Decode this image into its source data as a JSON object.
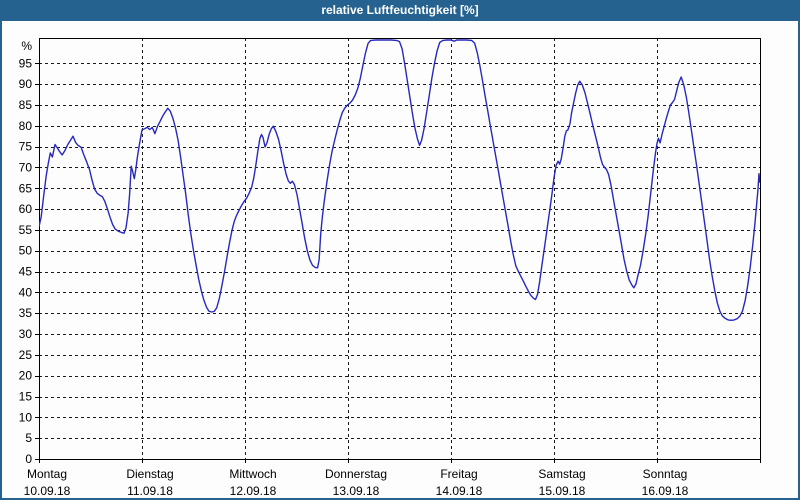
{
  "window": {
    "title": "relative Luftfeuchtigkeit [%]"
  },
  "colors": {
    "titlebar_bg": "#26628f",
    "titlebar_text": "#ffffff",
    "page_bg": "#fcfdfc",
    "grid": "#1a1a1a",
    "line": "#2828c0"
  },
  "chart_data": {
    "type": "line",
    "title": "relative Luftfeuchtigkeit [%]",
    "ylabel": "%",
    "unit_label": "%",
    "ylim": [
      0,
      101
    ],
    "y_ticks": [
      0,
      5,
      10,
      15,
      20,
      25,
      30,
      35,
      40,
      45,
      50,
      55,
      60,
      65,
      70,
      75,
      80,
      85,
      90,
      95
    ],
    "grid": "dashed",
    "legend": "none",
    "x_unit": "days since Mon 10.09.18 00:00 (7 days total)",
    "x_days": [
      {
        "label": "Montag",
        "date": "10.09.18"
      },
      {
        "label": "Dienstag",
        "date": "11.09.18"
      },
      {
        "label": "Mittwoch",
        "date": "12.09.18"
      },
      {
        "label": "Donnerstag",
        "date": "13.09.18"
      },
      {
        "label": "Freitag",
        "date": "14.09.18"
      },
      {
        "label": "Samstag",
        "date": "15.09.18"
      },
      {
        "label": "Sonntag",
        "date": "16.09.18"
      }
    ],
    "series": [
      {
        "name": "relative Luftfeuchtigkeit [%]",
        "color": "#2828c0",
        "points": [
          [
            0,
            55.8
          ],
          [
            0.02,
            58
          ],
          [
            0.045,
            63
          ],
          [
            0.07,
            68
          ],
          [
            0.09,
            71
          ],
          [
            0.11,
            73.5
          ],
          [
            0.13,
            72.5
          ],
          [
            0.155,
            75.5
          ],
          [
            0.175,
            74.8
          ],
          [
            0.2,
            73.8
          ],
          [
            0.225,
            73
          ],
          [
            0.25,
            74
          ],
          [
            0.28,
            75.5
          ],
          [
            0.305,
            76.5
          ],
          [
            0.33,
            77.5
          ],
          [
            0.355,
            76
          ],
          [
            0.38,
            75.3
          ],
          [
            0.41,
            74.8
          ],
          [
            0.435,
            73
          ],
          [
            0.46,
            71.5
          ],
          [
            0.49,
            69.5
          ],
          [
            0.515,
            67
          ],
          [
            0.54,
            64.8
          ],
          [
            0.565,
            63.8
          ],
          [
            0.59,
            63.3
          ],
          [
            0.615,
            63
          ],
          [
            0.64,
            61.8
          ],
          [
            0.665,
            60
          ],
          [
            0.69,
            58
          ],
          [
            0.715,
            56.3
          ],
          [
            0.74,
            55.2
          ],
          [
            0.77,
            54.7
          ],
          [
            0.8,
            54.4
          ],
          [
            0.825,
            54.2
          ],
          [
            0.845,
            55.5
          ],
          [
            0.865,
            59
          ],
          [
            0.88,
            63.5
          ],
          [
            0.895,
            70.3
          ],
          [
            0.91,
            69
          ],
          [
            0.925,
            67.3
          ],
          [
            0.94,
            69.5
          ],
          [
            0.955,
            72.5
          ],
          [
            0.975,
            75.5
          ],
          [
            1,
            79
          ],
          [
            1.025,
            79.3
          ],
          [
            1.05,
            79.6
          ],
          [
            1.075,
            79.1
          ],
          [
            1.1,
            79.6
          ],
          [
            1.125,
            78.1
          ],
          [
            1.15,
            79.8
          ],
          [
            1.175,
            81
          ],
          [
            1.2,
            82.3
          ],
          [
            1.225,
            83.3
          ],
          [
            1.25,
            84.2
          ],
          [
            1.275,
            83.5
          ],
          [
            1.3,
            81.8
          ],
          [
            1.325,
            79.5
          ],
          [
            1.35,
            76.5
          ],
          [
            1.375,
            72.5
          ],
          [
            1.4,
            68
          ],
          [
            1.425,
            63.5
          ],
          [
            1.45,
            58.5
          ],
          [
            1.475,
            54
          ],
          [
            1.5,
            50
          ],
          [
            1.525,
            46.5
          ],
          [
            1.55,
            43.2
          ],
          [
            1.575,
            40.5
          ],
          [
            1.6,
            38.2
          ],
          [
            1.625,
            36.5
          ],
          [
            1.65,
            35.5
          ],
          [
            1.675,
            35.3
          ],
          [
            1.7,
            35.4
          ],
          [
            1.725,
            36.3
          ],
          [
            1.75,
            38.5
          ],
          [
            1.775,
            41.5
          ],
          [
            1.8,
            44.8
          ],
          [
            1.825,
            48.5
          ],
          [
            1.85,
            52
          ],
          [
            1.875,
            55
          ],
          [
            1.895,
            57
          ],
          [
            1.915,
            58.3
          ],
          [
            1.94,
            59.6
          ],
          [
            1.965,
            60.8
          ],
          [
            1.99,
            61.8
          ],
          [
            2.015,
            62.6
          ],
          [
            2.04,
            63.8
          ],
          [
            2.065,
            65.3
          ],
          [
            2.085,
            67.5
          ],
          [
            2.105,
            70.5
          ],
          [
            2.125,
            74
          ],
          [
            2.145,
            77
          ],
          [
            2.16,
            77.9
          ],
          [
            2.175,
            77.2
          ],
          [
            2.195,
            74.9
          ],
          [
            2.215,
            76
          ],
          [
            2.235,
            78
          ],
          [
            2.255,
            79.3
          ],
          [
            2.275,
            79.9
          ],
          [
            2.3,
            78.6
          ],
          [
            2.325,
            76.8
          ],
          [
            2.35,
            74
          ],
          [
            2.375,
            71
          ],
          [
            2.4,
            68.3
          ],
          [
            2.42,
            66.8
          ],
          [
            2.44,
            66.2
          ],
          [
            2.46,
            66.7
          ],
          [
            2.48,
            65.9
          ],
          [
            2.505,
            63.5
          ],
          [
            2.53,
            60
          ],
          [
            2.555,
            56.5
          ],
          [
            2.58,
            53
          ],
          [
            2.605,
            50
          ],
          [
            2.63,
            47.8
          ],
          [
            2.655,
            46.5
          ],
          [
            2.68,
            46
          ],
          [
            2.705,
            45.9
          ],
          [
            2.72,
            48
          ],
          [
            2.735,
            54
          ],
          [
            2.75,
            58
          ],
          [
            2.77,
            62
          ],
          [
            2.795,
            66.5
          ],
          [
            2.82,
            70.5
          ],
          [
            2.845,
            73.8
          ],
          [
            2.87,
            76.5
          ],
          [
            2.895,
            79
          ],
          [
            2.92,
            81.3
          ],
          [
            2.945,
            83.2
          ],
          [
            2.97,
            84.3
          ],
          [
            2.995,
            85
          ],
          [
            3.02,
            85.5
          ],
          [
            3.045,
            86.2
          ],
          [
            3.07,
            87.4
          ],
          [
            3.095,
            89
          ],
          [
            3.12,
            91.5
          ],
          [
            3.145,
            94.5
          ],
          [
            3.17,
            97.5
          ],
          [
            3.195,
            99.8
          ],
          [
            3.22,
            100.5
          ],
          [
            3.27,
            100.6
          ],
          [
            3.32,
            100.6
          ],
          [
            3.37,
            100.6
          ],
          [
            3.42,
            100.6
          ],
          [
            3.47,
            100.5
          ],
          [
            3.5,
            100.2
          ],
          [
            3.525,
            98.5
          ],
          [
            3.55,
            95
          ],
          [
            3.575,
            91
          ],
          [
            3.6,
            87
          ],
          [
            3.625,
            83
          ],
          [
            3.65,
            79.5
          ],
          [
            3.675,
            76.8
          ],
          [
            3.695,
            75.3
          ],
          [
            3.715,
            76.5
          ],
          [
            3.74,
            79.5
          ],
          [
            3.765,
            83.5
          ],
          [
            3.79,
            87.5
          ],
          [
            3.815,
            91.5
          ],
          [
            3.84,
            95
          ],
          [
            3.865,
            98
          ],
          [
            3.89,
            100
          ],
          [
            3.92,
            100.5
          ],
          [
            3.96,
            100.6
          ],
          [
            4,
            100.6
          ],
          [
            4.03,
            100.3
          ],
          [
            4.055,
            100.6
          ],
          [
            4.1,
            100.6
          ],
          [
            4.15,
            100.6
          ],
          [
            4.2,
            100.5
          ],
          [
            4.23,
            99.8
          ],
          [
            4.255,
            97.5
          ],
          [
            4.28,
            94.5
          ],
          [
            4.305,
            91
          ],
          [
            4.33,
            87.3
          ],
          [
            4.355,
            83.8
          ],
          [
            4.38,
            80.3
          ],
          [
            4.405,
            76.8
          ],
          [
            4.43,
            73.3
          ],
          [
            4.455,
            69.8
          ],
          [
            4.48,
            66.3
          ],
          [
            4.505,
            62.8
          ],
          [
            4.53,
            59.3
          ],
          [
            4.555,
            55.8
          ],
          [
            4.58,
            52.3
          ],
          [
            4.605,
            49
          ],
          [
            4.63,
            46.3
          ],
          [
            4.65,
            45.2
          ],
          [
            4.675,
            44
          ],
          [
            4.7,
            42.8
          ],
          [
            4.725,
            41.5
          ],
          [
            4.75,
            40.3
          ],
          [
            4.775,
            39.3
          ],
          [
            4.8,
            38.6
          ],
          [
            4.82,
            38.3
          ],
          [
            4.84,
            39.5
          ],
          [
            4.86,
            42.5
          ],
          [
            4.88,
            46
          ],
          [
            4.9,
            49.5
          ],
          [
            4.92,
            53
          ],
          [
            4.94,
            56.5
          ],
          [
            4.96,
            60
          ],
          [
            4.98,
            63.5
          ],
          [
            5,
            67.5
          ],
          [
            5.02,
            70.5
          ],
          [
            5.04,
            71.5
          ],
          [
            5.055,
            70.8
          ],
          [
            5.07,
            72
          ],
          [
            5.09,
            75
          ],
          [
            5.105,
            77.5
          ],
          [
            5.12,
            78.8
          ],
          [
            5.135,
            79
          ],
          [
            5.155,
            80.5
          ],
          [
            5.17,
            83
          ],
          [
            5.19,
            85.5
          ],
          [
            5.21,
            87.8
          ],
          [
            5.23,
            89.8
          ],
          [
            5.25,
            90.7
          ],
          [
            5.275,
            89.8
          ],
          [
            5.3,
            88
          ],
          [
            5.325,
            85.5
          ],
          [
            5.35,
            83
          ],
          [
            5.375,
            80.3
          ],
          [
            5.4,
            77.8
          ],
          [
            5.425,
            75.3
          ],
          [
            5.45,
            72.5
          ],
          [
            5.47,
            70.8
          ],
          [
            5.49,
            70
          ],
          [
            5.51,
            69.5
          ],
          [
            5.53,
            68.3
          ],
          [
            5.555,
            65.5
          ],
          [
            5.58,
            62
          ],
          [
            5.605,
            58.5
          ],
          [
            5.63,
            55
          ],
          [
            5.655,
            51.5
          ],
          [
            5.68,
            48
          ],
          [
            5.705,
            45.2
          ],
          [
            5.73,
            43
          ],
          [
            5.755,
            41.8
          ],
          [
            5.775,
            41.1
          ],
          [
            5.795,
            42
          ],
          [
            5.815,
            44
          ],
          [
            5.84,
            46.5
          ],
          [
            5.865,
            50
          ],
          [
            5.89,
            54
          ],
          [
            5.915,
            58.5
          ],
          [
            5.94,
            64
          ],
          [
            5.965,
            69.5
          ],
          [
            5.985,
            73.5
          ],
          [
            6,
            75.8
          ],
          [
            6.015,
            77
          ],
          [
            6.03,
            75.9
          ],
          [
            6.05,
            78
          ],
          [
            6.07,
            79.9
          ],
          [
            6.09,
            81.8
          ],
          [
            6.11,
            83.4
          ],
          [
            6.13,
            85
          ],
          [
            6.15,
            85.6
          ],
          [
            6.17,
            86.3
          ],
          [
            6.19,
            88.3
          ],
          [
            6.21,
            90.3
          ],
          [
            6.235,
            91.7
          ],
          [
            6.26,
            89.8
          ],
          [
            6.285,
            86.8
          ],
          [
            6.31,
            83
          ],
          [
            6.335,
            78.8
          ],
          [
            6.36,
            74.5
          ],
          [
            6.385,
            70.3
          ],
          [
            6.41,
            66
          ],
          [
            6.435,
            61.5
          ],
          [
            6.46,
            57
          ],
          [
            6.485,
            52.5
          ],
          [
            6.51,
            48
          ],
          [
            6.535,
            44
          ],
          [
            6.56,
            40.5
          ],
          [
            6.585,
            37.5
          ],
          [
            6.61,
            35.5
          ],
          [
            6.635,
            34.3
          ],
          [
            6.66,
            33.8
          ],
          [
            6.69,
            33.4
          ],
          [
            6.72,
            33.3
          ],
          [
            6.75,
            33.4
          ],
          [
            6.78,
            33.7
          ],
          [
            6.805,
            34.3
          ],
          [
            6.83,
            35.5
          ],
          [
            6.855,
            38
          ],
          [
            6.88,
            41.5
          ],
          [
            6.905,
            46
          ],
          [
            6.93,
            51.5
          ],
          [
            6.95,
            56.5
          ],
          [
            6.965,
            60.5
          ],
          [
            6.98,
            64.5
          ],
          [
            6.99,
            68.5
          ],
          [
            7,
            66.3
          ]
        ]
      }
    ]
  }
}
